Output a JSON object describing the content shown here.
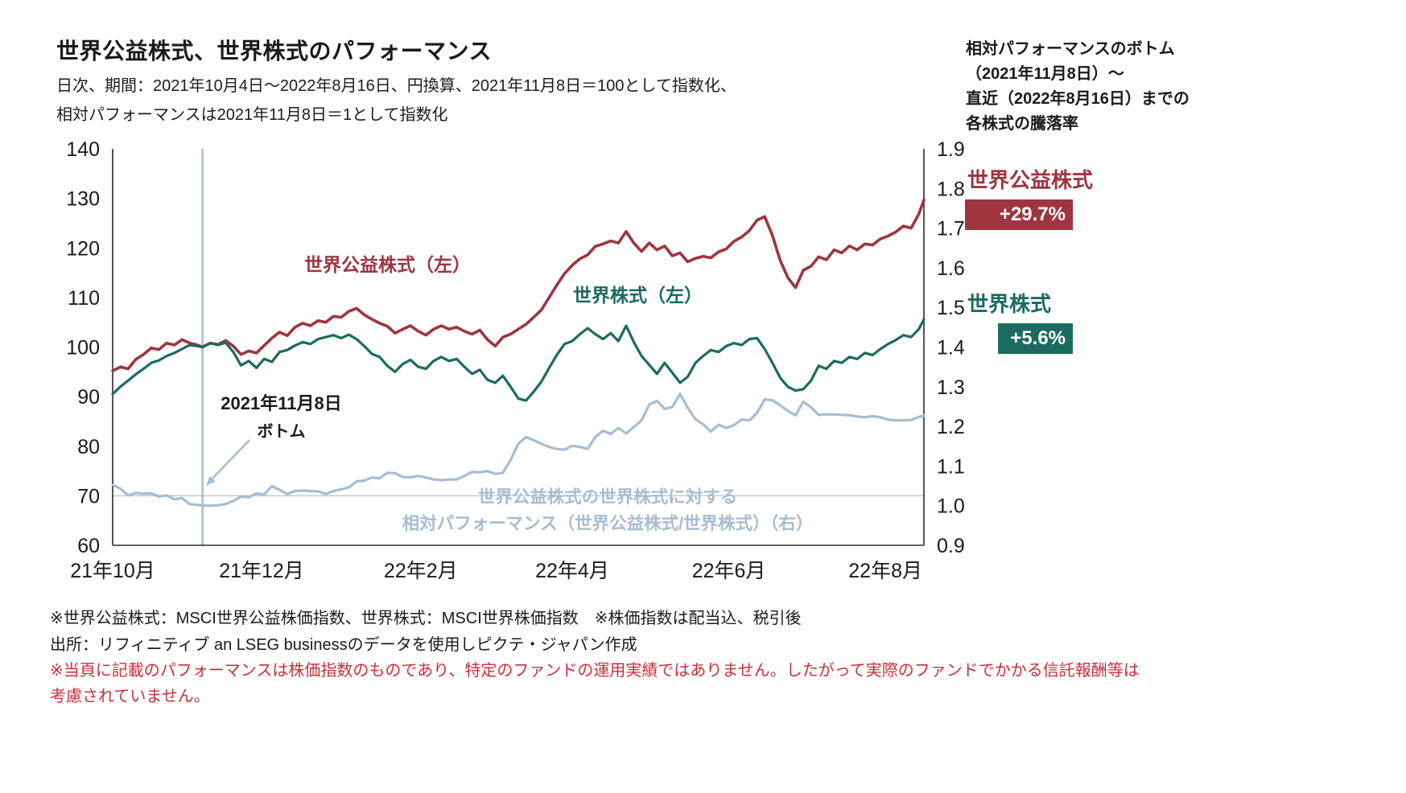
{
  "page": {
    "title": "世界公益株式、世界株式のパフォーマンス",
    "subtitle_line1": "日次、期間：2021年10月4日～2022年8月16日、円換算、2021年11月8日＝100として指数化、",
    "subtitle_line2": "相対パフォーマンスは2021年11月8日＝1として指数化"
  },
  "side_panel": {
    "note_lines": [
      "相対パフォーマンスのボトム",
      "（2021年11月8日）～",
      "直近（2022年8月16日）までの",
      "各株式の騰落率"
    ],
    "utilities_label": "世界公益株式",
    "utilities_change": "+29.7%",
    "world_label": "世界株式",
    "world_change": "+5.6%"
  },
  "annotations": {
    "utilities_line_label": "世界公益株式（左）",
    "world_line_label": "世界株式（左）",
    "bottom_date_line1": "2021年11月8日",
    "bottom_date_line2": "ボトム",
    "relative_label_line1": "世界公益株式の世界株式に対する",
    "relative_label_line2": "相対パフォーマンス（世界公益株式/世界株式）（右）"
  },
  "footnotes": {
    "line1": "※世界公益株式：MSCI世界公益株価指数、世界株式：MSCI世界株価指数　※株価指数は配当込、税引後",
    "line2": "出所：リフィニティブ an LSEG businessのデータを使用しピクテ・ジャパン作成",
    "line3": "※当頁に記載のパフォーマンスは株価指数のものであり、特定のファンドの運用実績ではありません。したがって実際のファンドでかかる信託報酬等は",
    "line4": "考慮されていません。"
  },
  "colors": {
    "utilities": "#9E3540",
    "world": "#1B6B5E",
    "relative": "#A8BCD2",
    "marker_line": "#A8BCD2",
    "gridline": "#c9c9c9",
    "axis_line": "#2b2b2b",
    "axis_text": "#1a1a1a",
    "warning_text": "#C9303C"
  },
  "chart_data": {
    "type": "line",
    "title": "世界公益株式、世界株式のパフォーマンス",
    "x_unit": "days since 2021-10-04",
    "x_range": [
      0,
      316
    ],
    "marker_day": 35,
    "reference_line_left": 70,
    "left_axis": {
      "min": 60,
      "max": 140,
      "ticks": [
        60,
        70,
        80,
        90,
        100,
        110,
        120,
        130,
        140
      ]
    },
    "right_axis": {
      "min": 0.9,
      "max": 1.9,
      "ticks": [
        0.9,
        1.0,
        1.1,
        1.2,
        1.3,
        1.4,
        1.5,
        1.6,
        1.7,
        1.8,
        1.9
      ]
    },
    "x_ticks": [
      {
        "day": 0,
        "label": "21年10月"
      },
      {
        "day": 58,
        "label": "21年12月"
      },
      {
        "day": 120,
        "label": "22年2月"
      },
      {
        "day": 179,
        "label": "22年4月"
      },
      {
        "day": 240,
        "label": "22年6月"
      },
      {
        "day": 301,
        "label": "22年8月"
      }
    ],
    "days": [
      0,
      3,
      6,
      9,
      12,
      15,
      18,
      21,
      24,
      27,
      30,
      33,
      35,
      38,
      41,
      44,
      47,
      50,
      53,
      56,
      59,
      62,
      65,
      68,
      71,
      74,
      77,
      80,
      83,
      86,
      89,
      92,
      95,
      98,
      101,
      104,
      107,
      110,
      113,
      116,
      119,
      122,
      125,
      128,
      131,
      134,
      137,
      140,
      143,
      146,
      149,
      152,
      155,
      158,
      161,
      164,
      167,
      170,
      173,
      176,
      179,
      182,
      185,
      188,
      191,
      194,
      197,
      200,
      203,
      206,
      209,
      212,
      215,
      218,
      221,
      224,
      227,
      230,
      233,
      236,
      239,
      242,
      245,
      248,
      251,
      254,
      257,
      260,
      263,
      266,
      269,
      272,
      275,
      278,
      281,
      284,
      287,
      290,
      293,
      296,
      299,
      302,
      305,
      308,
      311,
      314,
      316
    ],
    "series": [
      {
        "name": "世界公益株式（MSCI世界公益株価指数、左軸）",
        "data_name": "utilities-series-line",
        "axis": "left",
        "color_key": "utilities",
        "width": 3.6,
        "values": [
          95.2,
          96.0,
          95.6,
          97.5,
          98.5,
          99.8,
          99.5,
          100.8,
          100.4,
          101.5,
          100.8,
          100.4,
          100.0,
          100.8,
          100.5,
          101.3,
          100.2,
          98.5,
          99.2,
          98.8,
          100.3,
          101.8,
          103.0,
          102.3,
          104.0,
          104.8,
          104.3,
          105.3,
          105.0,
          106.2,
          106.0,
          107.2,
          107.8,
          106.5,
          105.6,
          104.8,
          104.2,
          102.8,
          103.6,
          104.3,
          103.2,
          102.4,
          103.6,
          104.3,
          103.6,
          104.0,
          103.2,
          102.6,
          103.4,
          101.5,
          100.2,
          102.0,
          102.6,
          103.6,
          104.6,
          106.0,
          107.5,
          110.0,
          112.5,
          114.8,
          116.5,
          117.8,
          118.6,
          120.3,
          120.8,
          121.4,
          121.0,
          123.3,
          121.0,
          119.3,
          121.0,
          119.6,
          120.4,
          118.4,
          119.0,
          117.2,
          117.9,
          118.3,
          118.0,
          119.2,
          119.8,
          121.3,
          122.2,
          123.5,
          125.6,
          126.3,
          122.5,
          117.5,
          114.0,
          112.0,
          115.5,
          116.3,
          118.2,
          117.6,
          119.6,
          119.0,
          120.4,
          119.6,
          120.8,
          120.6,
          121.8,
          122.4,
          123.2,
          124.4,
          124.0,
          126.8,
          129.7
        ]
      },
      {
        "name": "世界株式（MSCI世界株価指数、左軸）",
        "data_name": "world-series-line",
        "axis": "left",
        "color_key": "world",
        "width": 3.2,
        "values": [
          90.5,
          92.0,
          93.2,
          94.5,
          95.6,
          96.8,
          97.3,
          98.2,
          98.8,
          99.6,
          100.4,
          100.2,
          100.0,
          100.8,
          100.4,
          100.9,
          99.0,
          96.3,
          97.2,
          95.8,
          97.6,
          97.0,
          99.0,
          99.4,
          100.3,
          101.0,
          100.6,
          101.6,
          102.0,
          102.4,
          101.8,
          102.5,
          101.6,
          100.2,
          98.6,
          98.0,
          96.2,
          95.0,
          96.6,
          97.4,
          96.0,
          95.6,
          97.2,
          98.0,
          97.2,
          97.6,
          96.0,
          94.6,
          95.4,
          93.4,
          92.8,
          94.2,
          92.0,
          89.6,
          89.2,
          91.0,
          93.0,
          95.8,
          98.4,
          100.6,
          101.2,
          102.6,
          103.8,
          102.6,
          101.6,
          102.8,
          101.2,
          104.3,
          101.0,
          98.2,
          96.4,
          94.6,
          96.8,
          94.8,
          92.8,
          94.0,
          96.8,
          98.2,
          99.4,
          99.0,
          100.2,
          100.8,
          100.4,
          101.6,
          101.8,
          99.6,
          96.8,
          93.8,
          92.0,
          91.2,
          91.5,
          93.2,
          96.2,
          95.6,
          97.2,
          96.8,
          98.0,
          97.6,
          98.8,
          98.4,
          99.6,
          100.6,
          101.4,
          102.4,
          102.0,
          103.6,
          105.6
        ]
      },
      {
        "name": "相対パフォーマンス（世界公益株式/世界株式、右軸）",
        "data_name": "relative-series-line",
        "axis": "right",
        "color_key": "relative",
        "width": 3.2,
        "values": [
          1.052,
          1.043,
          1.026,
          1.032,
          1.03,
          1.031,
          1.023,
          1.026,
          1.016,
          1.019,
          1.004,
          1.002,
          1.0,
          1.0,
          1.001,
          1.004,
          1.012,
          1.023,
          1.021,
          1.031,
          1.028,
          1.049,
          1.04,
          1.029,
          1.037,
          1.038,
          1.037,
          1.036,
          1.029,
          1.037,
          1.041,
          1.046,
          1.061,
          1.063,
          1.071,
          1.069,
          1.083,
          1.082,
          1.072,
          1.071,
          1.075,
          1.071,
          1.066,
          1.064,
          1.066,
          1.066,
          1.075,
          1.085,
          1.084,
          1.087,
          1.08,
          1.083,
          1.115,
          1.156,
          1.173,
          1.165,
          1.156,
          1.148,
          1.143,
          1.141,
          1.151,
          1.148,
          1.143,
          1.173,
          1.189,
          1.181,
          1.196,
          1.182,
          1.198,
          1.215,
          1.255,
          1.264,
          1.244,
          1.249,
          1.282,
          1.247,
          1.218,
          1.205,
          1.187,
          1.204,
          1.196,
          1.203,
          1.217,
          1.215,
          1.234,
          1.268,
          1.266,
          1.253,
          1.239,
          1.228,
          1.262,
          1.248,
          1.229,
          1.23,
          1.23,
          1.229,
          1.228,
          1.225,
          1.223,
          1.226,
          1.223,
          1.217,
          1.215,
          1.215,
          1.216,
          1.224,
          1.227
        ]
      }
    ]
  }
}
